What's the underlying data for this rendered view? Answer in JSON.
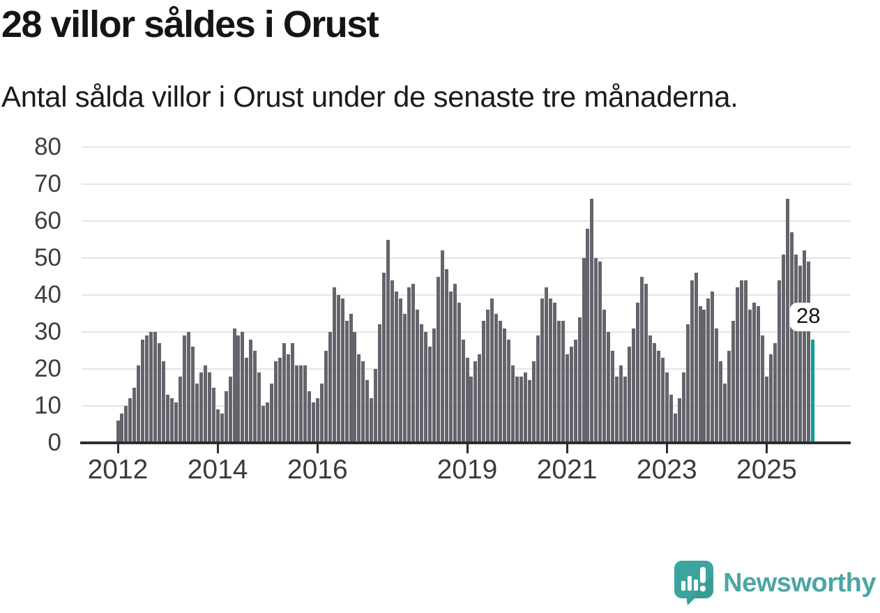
{
  "title": "28 villor såldes i Orust",
  "subtitle": "Antal sålda villor i Orust under de senaste tre månaderna.",
  "annotation": {
    "label": "28"
  },
  "branding": {
    "name": "Newsworthy"
  },
  "colors": {
    "bar": "#64646c",
    "highlight": "#0a9f99",
    "axis": "#2d2d2d",
    "grid": "#e4e4e4",
    "tick_label": "#3d3d3d",
    "brand_teal": "#4ba6a2",
    "brand_icon_bg": "#3ca49e"
  },
  "chart_data": {
    "type": "bar",
    "title": "28 villor såldes i Orust",
    "subtitle": "Antal sålda villor i Orust under de senaste tre månaderna.",
    "x_unit": "month",
    "start_month": "2012-01",
    "end_month": "2025-12",
    "ylim": [
      0,
      80
    ],
    "yticks": [
      0,
      10,
      20,
      30,
      40,
      50,
      60,
      70,
      80
    ],
    "grid": true,
    "legend": false,
    "xticks": [
      {
        "label": "2012",
        "month_index": 0
      },
      {
        "label": "2014",
        "month_index": 24
      },
      {
        "label": "2016",
        "month_index": 48
      },
      {
        "label": "2019",
        "month_index": 84
      },
      {
        "label": "2021",
        "month_index": 108
      },
      {
        "label": "2023",
        "month_index": 132
      },
      {
        "label": "2025",
        "month_index": 156
      }
    ],
    "values": [
      6,
      8,
      10,
      12,
      15,
      21,
      28,
      29,
      30,
      30,
      27,
      22,
      13,
      12,
      11,
      18,
      29,
      30,
      26,
      16,
      19,
      21,
      19,
      15,
      9,
      8,
      14,
      18,
      31,
      29,
      30,
      23,
      28,
      25,
      19,
      10,
      11,
      16,
      22,
      23,
      27,
      24,
      27,
      21,
      21,
      21,
      14,
      11,
      12,
      16,
      25,
      30,
      42,
      40,
      39,
      33,
      35,
      30,
      24,
      22,
      17,
      12,
      20,
      32,
      46,
      55,
      44,
      41,
      39,
      35,
      42,
      43,
      36,
      32,
      30,
      26,
      31,
      45,
      52,
      47,
      41,
      43,
      38,
      28,
      23,
      18,
      22,
      24,
      33,
      36,
      39,
      35,
      33,
      31,
      28,
      21,
      18,
      18,
      19,
      17,
      22,
      29,
      39,
      42,
      39,
      38,
      33,
      33,
      24,
      26,
      28,
      34,
      50,
      58,
      66,
      50,
      49,
      36,
      30,
      25,
      18,
      21,
      18,
      26,
      31,
      38,
      45,
      43,
      29,
      27,
      25,
      23,
      19,
      13,
      8,
      12,
      19,
      32,
      44,
      46,
      37,
      36,
      39,
      41,
      31,
      22,
      16,
      25,
      33,
      42,
      44,
      44,
      36,
      38,
      37,
      29,
      18,
      24,
      27,
      44,
      51,
      66,
      57,
      51,
      48,
      52,
      49,
      28
    ],
    "highlight_last": true,
    "last_value_label": "28"
  }
}
